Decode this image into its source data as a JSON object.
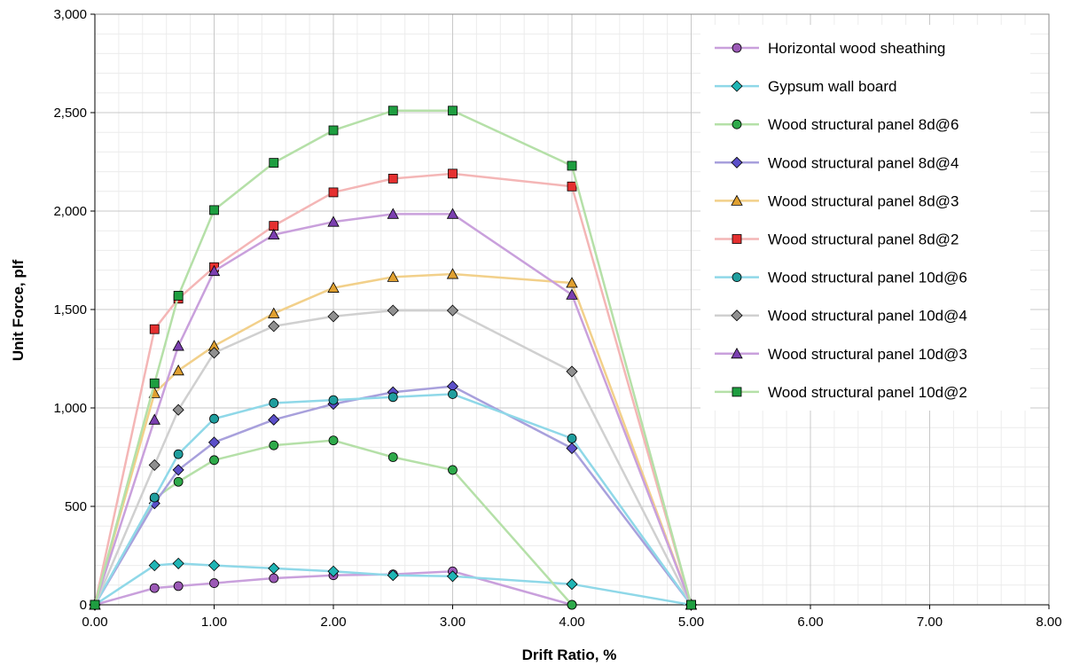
{
  "chart_data": {
    "type": "line",
    "xlabel": "Drift Ratio, %",
    "ylabel": "Unit Force, plf",
    "xlim": [
      0,
      8
    ],
    "ylim": [
      0,
      3000
    ],
    "x_ticks": [
      "0.00",
      "1.00",
      "2.00",
      "3.00",
      "4.00",
      "5.00",
      "6.00",
      "7.00",
      "8.00"
    ],
    "y_ticks": [
      "0",
      "500",
      "1,000",
      "1,500",
      "2,000",
      "2,500",
      "3,000"
    ],
    "grid": true,
    "legend_position": "top-right",
    "series": [
      {
        "name": "Horizontal wood sheathing",
        "line_color": "#c9a0dc",
        "marker": "circle",
        "marker_color": "#9b59b6",
        "points": [
          [
            0,
            0
          ],
          [
            0.5,
            85
          ],
          [
            0.7,
            95
          ],
          [
            1.0,
            110
          ],
          [
            1.5,
            135
          ],
          [
            2.0,
            150
          ],
          [
            2.5,
            155
          ],
          [
            3.0,
            170
          ],
          [
            4.0,
            0
          ]
        ]
      },
      {
        "name": "Gypsum wall board",
        "line_color": "#8fd8e8",
        "marker": "diamond",
        "marker_color": "#1fb5b5",
        "points": [
          [
            0,
            0
          ],
          [
            0.5,
            200
          ],
          [
            0.7,
            210
          ],
          [
            1.0,
            200
          ],
          [
            1.5,
            185
          ],
          [
            2.0,
            170
          ],
          [
            2.5,
            150
          ],
          [
            3.0,
            145
          ],
          [
            4.0,
            105
          ],
          [
            5.0,
            0
          ]
        ]
      },
      {
        "name": "Wood structural panel 8d@6",
        "line_color": "#b5e0a8",
        "marker": "circle",
        "marker_color": "#2eaa4a",
        "points": [
          [
            0,
            0
          ],
          [
            0.5,
            540
          ],
          [
            0.7,
            625
          ],
          [
            1.0,
            735
          ],
          [
            1.5,
            810
          ],
          [
            2.0,
            835
          ],
          [
            2.5,
            750
          ],
          [
            3.0,
            685
          ],
          [
            4.0,
            0
          ]
        ]
      },
      {
        "name": "Wood structural panel 8d@4",
        "line_color": "#a8a0dc",
        "marker": "diamond",
        "marker_color": "#5b4fc9",
        "points": [
          [
            0,
            0
          ],
          [
            0.5,
            515
          ],
          [
            0.7,
            685
          ],
          [
            1.0,
            825
          ],
          [
            1.5,
            940
          ],
          [
            2.0,
            1020
          ],
          [
            2.5,
            1080
          ],
          [
            3.0,
            1110
          ],
          [
            4.0,
            795
          ],
          [
            5.0,
            0
          ]
        ]
      },
      {
        "name": "Wood structural panel 8d@3",
        "line_color": "#f2d08a",
        "marker": "triangle",
        "marker_color": "#e0a030",
        "points": [
          [
            0,
            0
          ],
          [
            0.5,
            1075
          ],
          [
            0.7,
            1190
          ],
          [
            1.0,
            1315
          ],
          [
            1.5,
            1480
          ],
          [
            2.0,
            1610
          ],
          [
            2.5,
            1665
          ],
          [
            3.0,
            1680
          ],
          [
            4.0,
            1635
          ],
          [
            5.0,
            0
          ]
        ]
      },
      {
        "name": "Wood structural panel 8d@2",
        "line_color": "#f4b6b6",
        "marker": "square",
        "marker_color": "#e53030",
        "points": [
          [
            0,
            0
          ],
          [
            0.5,
            1400
          ],
          [
            0.7,
            1555
          ],
          [
            1.0,
            1715
          ],
          [
            1.5,
            1925
          ],
          [
            2.0,
            2095
          ],
          [
            2.5,
            2165
          ],
          [
            3.0,
            2190
          ],
          [
            4.0,
            2125
          ],
          [
            5.0,
            0
          ]
        ]
      },
      {
        "name": "Wood structural panel 10d@6",
        "line_color": "#8fd8e8",
        "marker": "circle",
        "marker_color": "#1f9e9e",
        "points": [
          [
            0,
            0
          ],
          [
            0.5,
            545
          ],
          [
            0.7,
            765
          ],
          [
            1.0,
            945
          ],
          [
            1.5,
            1025
          ],
          [
            2.0,
            1040
          ],
          [
            2.5,
            1055
          ],
          [
            3.0,
            1070
          ],
          [
            4.0,
            845
          ],
          [
            5.0,
            0
          ]
        ]
      },
      {
        "name": "Wood structural panel 10d@4",
        "line_color": "#d0d0d0",
        "marker": "diamond",
        "marker_color": "#909090",
        "points": [
          [
            0,
            0
          ],
          [
            0.5,
            710
          ],
          [
            0.7,
            990
          ],
          [
            1.0,
            1280
          ],
          [
            1.5,
            1415
          ],
          [
            2.0,
            1465
          ],
          [
            2.5,
            1495
          ],
          [
            3.0,
            1495
          ],
          [
            4.0,
            1185
          ],
          [
            5.0,
            0
          ]
        ]
      },
      {
        "name": "Wood structural panel 10d@3",
        "line_color": "#c9a0dc",
        "marker": "triangle",
        "marker_color": "#7b3fb0",
        "points": [
          [
            0,
            0
          ],
          [
            0.5,
            940
          ],
          [
            0.7,
            1315
          ],
          [
            1.0,
            1695
          ],
          [
            1.5,
            1880
          ],
          [
            2.0,
            1945
          ],
          [
            2.5,
            1985
          ],
          [
            3.0,
            1985
          ],
          [
            4.0,
            1575
          ],
          [
            5.0,
            0
          ]
        ]
      },
      {
        "name": "Wood structural panel 10d@2",
        "line_color": "#b5e0a8",
        "marker": "square",
        "marker_color": "#1e9e40",
        "points": [
          [
            0,
            0
          ],
          [
            0.5,
            1125
          ],
          [
            0.7,
            1570
          ],
          [
            1.0,
            2005
          ],
          [
            1.5,
            2245
          ],
          [
            2.0,
            2410
          ],
          [
            2.5,
            2510
          ],
          [
            3.0,
            2510
          ],
          [
            4.0,
            2230
          ],
          [
            5.0,
            0
          ]
        ]
      }
    ]
  }
}
